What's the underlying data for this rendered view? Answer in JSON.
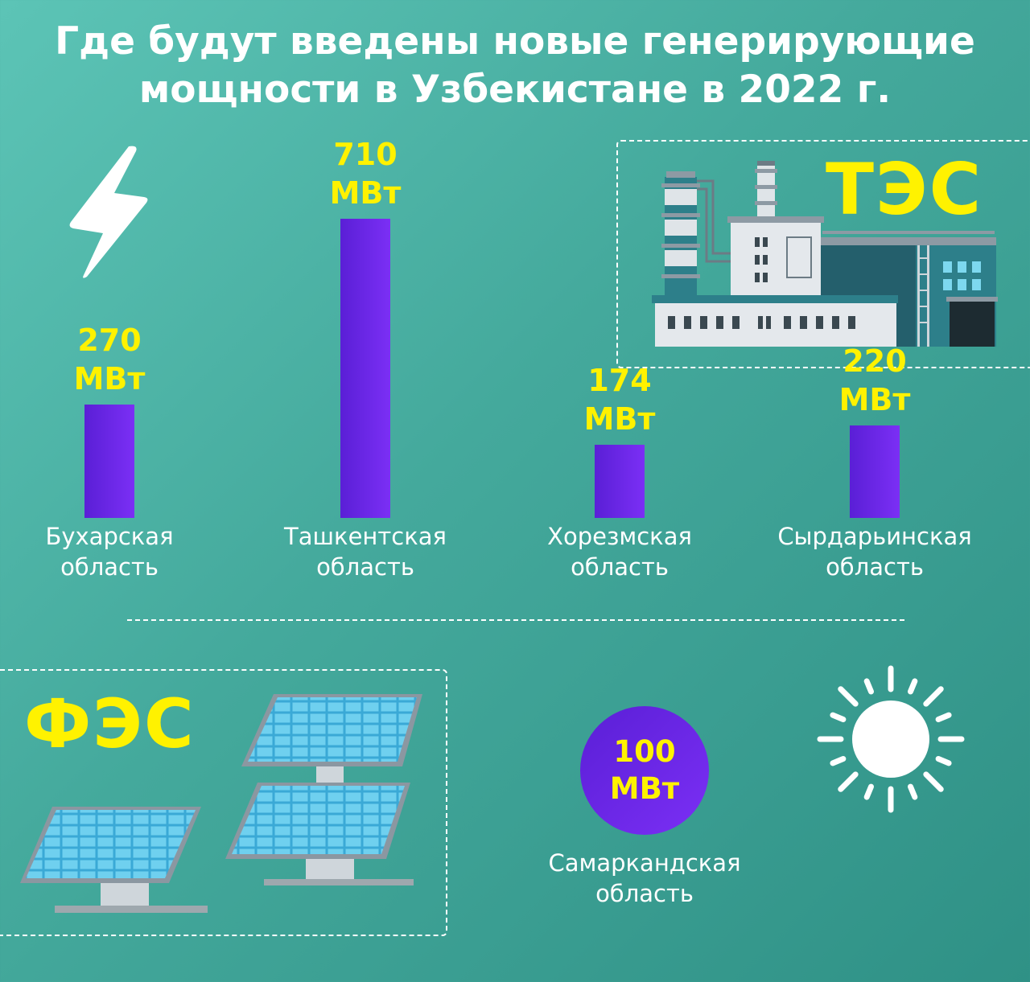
{
  "title": {
    "line1": "Где будут введены новые генерирующие",
    "line2": "мощности в Узбекистане в 2022 г."
  },
  "tes_label": "ТЭС",
  "fes_label": "ФЭС",
  "unit": "МВт",
  "chart_data": {
    "type": "bar",
    "group": "ТЭС",
    "categories": [
      {
        "line1": "Бухарская",
        "line2": "область"
      },
      {
        "line1": "Ташкентская",
        "line2": "область"
      },
      {
        "line1": "Хорезмская",
        "line2": "область"
      },
      {
        "line1": "Сырдарьинская",
        "line2": "область"
      }
    ],
    "values": [
      270,
      710,
      174,
      220
    ],
    "value_labels": [
      "270",
      "710",
      "174",
      "220"
    ],
    "unit": "МВт",
    "ylim": [
      0,
      710
    ],
    "bar_color": "#6a27e6",
    "label_color": "#fff200"
  },
  "solar": {
    "group": "ФЭС",
    "value": 100,
    "value_label": "100",
    "unit": "МВт",
    "region": {
      "line1": "Самаркандская",
      "line2": "область"
    }
  },
  "icons": [
    "lightning-icon",
    "power-plant-icon",
    "solar-panel-icon",
    "sun-icon"
  ],
  "colors": {
    "accent_yellow": "#fff200",
    "bar_purple": "#6a27e6",
    "background_teal": "#44a99c"
  }
}
